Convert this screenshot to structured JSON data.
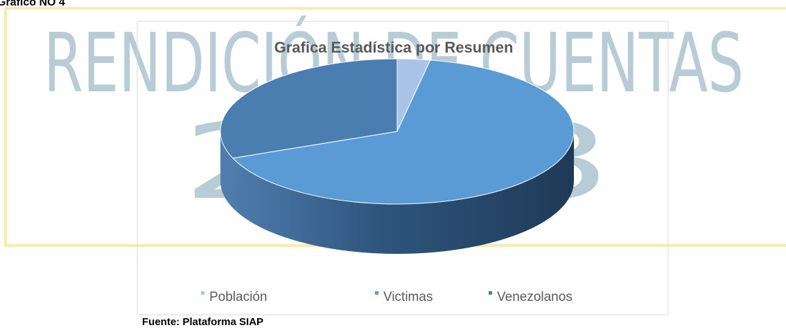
{
  "heading": "Grafico NO 4",
  "watermark": {
    "line1": "RENDICIÓN DE CUENTAS",
    "line2": "2023"
  },
  "chart_data": {
    "type": "pie",
    "title": "Grafica Estadística por Resumen",
    "categories": [
      "Población",
      "Victimas",
      "Venezolanos"
    ],
    "values": [
      3,
      66,
      31
    ],
    "colors": [
      "#a9c4e6",
      "#5b9bd5",
      "#4a7eb0"
    ],
    "legend": "bottom"
  },
  "source": "Fuente: Plataforma SIAP"
}
